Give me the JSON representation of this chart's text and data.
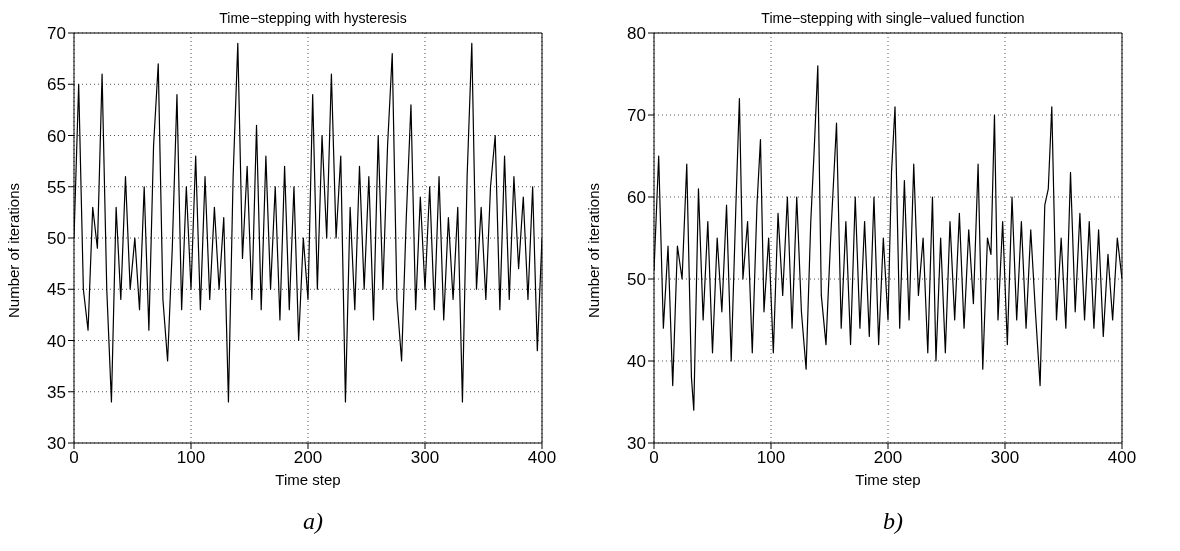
{
  "chart_data": [
    {
      "type": "line",
      "title": "Time−stepping with hysteresis",
      "xlabel": "Time step",
      "ylabel": "Number of iterations",
      "annotations": [
        "a)"
      ],
      "xlim": [
        0,
        400
      ],
      "xticks": [
        0,
        100,
        200,
        300,
        400
      ],
      "ylim": [
        30,
        70
      ],
      "yticks": [
        30,
        35,
        40,
        45,
        50,
        55,
        60,
        65,
        70
      ],
      "grid": true,
      "marker": "none",
      "line_style": "solid",
      "series": [
        {
          "color": "#000000",
          "x": [
            0,
            4,
            8,
            12,
            16,
            20,
            24,
            28,
            32,
            36,
            40,
            44,
            48,
            52,
            56,
            60,
            64,
            68,
            72,
            76,
            80,
            84,
            88,
            92,
            96,
            100,
            104,
            108,
            112,
            116,
            120,
            124,
            128,
            132,
            136,
            140,
            144,
            148,
            152,
            156,
            160,
            164,
            168,
            172,
            176,
            180,
            184,
            188,
            192,
            196,
            200,
            204,
            208,
            212,
            216,
            220,
            224,
            228,
            232,
            236,
            240,
            244,
            248,
            252,
            256,
            260,
            264,
            268,
            272,
            276,
            280,
            284,
            288,
            292,
            296,
            300,
            304,
            308,
            312,
            316,
            320,
            324,
            328,
            332,
            336,
            340,
            344,
            348,
            352,
            356,
            360,
            364,
            368,
            372,
            376,
            380,
            384,
            388,
            392,
            396,
            400
          ],
          "values": [
            50,
            65,
            45,
            41,
            53,
            49,
            66,
            45,
            34,
            53,
            44,
            56,
            45,
            50,
            43,
            55,
            41,
            59,
            67,
            44,
            38,
            49,
            64,
            43,
            55,
            45,
            58,
            43,
            56,
            44,
            53,
            45,
            52,
            34,
            56,
            69,
            48,
            57,
            44,
            61,
            43,
            58,
            45,
            55,
            42,
            57,
            43,
            55,
            40,
            50,
            44,
            64,
            45,
            60,
            50,
            66,
            50,
            58,
            34,
            53,
            43,
            57,
            45,
            56,
            42,
            60,
            45,
            59,
            68,
            44,
            38,
            52,
            63,
            43,
            54,
            45,
            55,
            43,
            56,
            42,
            52,
            44,
            53,
            34,
            56,
            69,
            45,
            53,
            44,
            55,
            60,
            43,
            58,
            44,
            56,
            47,
            54,
            44,
            55,
            39,
            50
          ]
        }
      ]
    },
    {
      "type": "line",
      "title": "Time−stepping with single−valued function",
      "xlabel": "Time step",
      "ylabel": "Number of iterations",
      "annotations": [
        "b)"
      ],
      "xlim": [
        0,
        400
      ],
      "xticks": [
        0,
        100,
        200,
        300,
        400
      ],
      "ylim": [
        30,
        80
      ],
      "yticks": [
        30,
        40,
        50,
        60,
        70,
        80
      ],
      "grid": true,
      "marker": "none",
      "line_style": "solid",
      "series": [
        {
          "color": "#000000",
          "x": [
            0,
            4,
            8,
            12,
            16,
            20,
            24,
            28,
            32,
            34,
            38,
            42,
            46,
            50,
            54,
            58,
            62,
            66,
            70,
            73,
            76,
            80,
            84,
            88,
            91,
            94,
            98,
            102,
            106,
            110,
            114,
            118,
            122,
            126,
            130,
            134,
            137,
            140,
            143,
            147,
            151,
            156,
            160,
            164,
            168,
            172,
            176,
            180,
            184,
            188,
            192,
            196,
            200,
            203,
            206,
            210,
            214,
            218,
            222,
            226,
            230,
            234,
            238,
            241,
            245,
            249,
            253,
            257,
            261,
            265,
            269,
            273,
            277,
            281,
            285,
            288,
            291,
            294,
            298,
            302,
            306,
            310,
            314,
            318,
            322,
            326,
            330,
            334,
            337,
            340,
            344,
            348,
            352,
            356,
            360,
            364,
            368,
            372,
            376,
            380,
            384,
            388,
            392,
            396,
            400
          ],
          "values": [
            51,
            65,
            44,
            54,
            37,
            54,
            50,
            64,
            38,
            34,
            61,
            45,
            57,
            41,
            55,
            46,
            59,
            40,
            59,
            72,
            50,
            57,
            41,
            59,
            67,
            46,
            55,
            41,
            58,
            48,
            60,
            44,
            60,
            46,
            39,
            57,
            66,
            76,
            48,
            42,
            55,
            69,
            44,
            57,
            42,
            60,
            44,
            57,
            43,
            60,
            42,
            55,
            45,
            63,
            71,
            44,
            62,
            45,
            64,
            48,
            55,
            41,
            60,
            40,
            55,
            41,
            57,
            45,
            58,
            44,
            56,
            47,
            64,
            39,
            55,
            53,
            70,
            45,
            57,
            42,
            60,
            45,
            57,
            44,
            56,
            46,
            37,
            59,
            61,
            71,
            45,
            55,
            44,
            63,
            46,
            58,
            45,
            57,
            44,
            56,
            43,
            53,
            45,
            55,
            50
          ]
        }
      ]
    }
  ]
}
